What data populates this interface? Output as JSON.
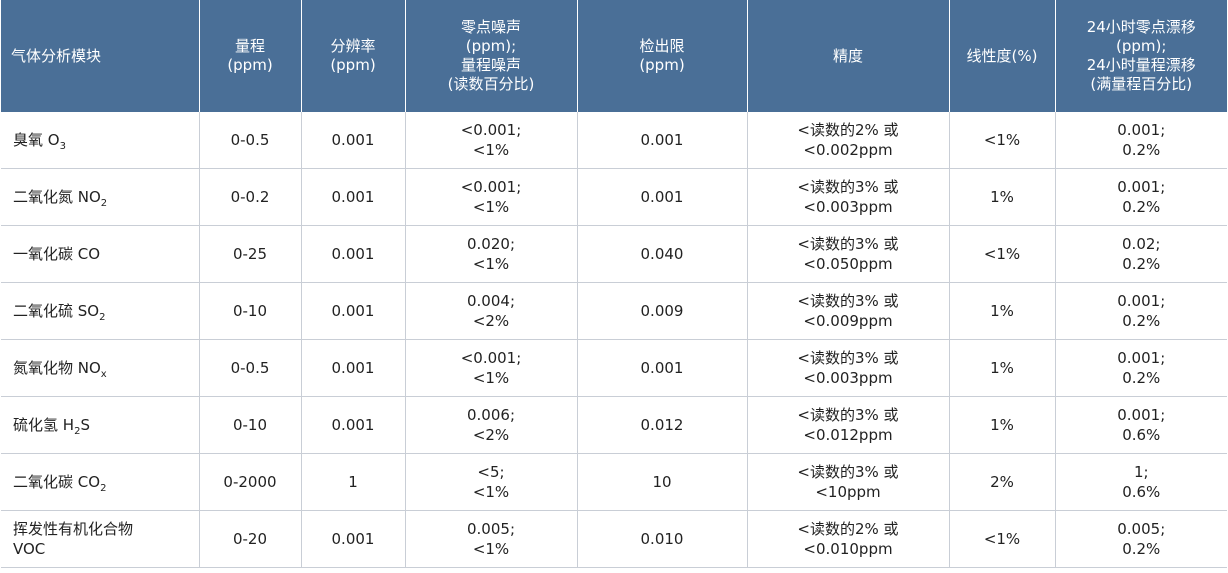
{
  "headers": [
    "气体分析模块",
    "量程\n(ppm)",
    "分辨率\n(ppm)",
    "零点噪声\n(ppm);\n量程噪声\n(读数百分比)",
    "检出限\n(ppm)",
    "精度",
    "线性度(%)",
    "24小时零点漂移\n(ppm);\n24小时量程漂移\n(满量程百分比)"
  ],
  "rows": [
    {
      "gas": "臭氧 O",
      "sub": "3",
      "range": "0-0.5",
      "resolution": "0.001",
      "noise": "<0.001;\n<1%",
      "detection": "0.001",
      "precision": "<读数的2% 或\n<0.002ppm",
      "linearity": "<1%",
      "drift": "0.001;\n0.2%"
    },
    {
      "gas": "二氧化氮 NO",
      "sub": "2",
      "range": "0-0.2",
      "resolution": "0.001",
      "noise": "<0.001;\n<1%",
      "detection": "0.001",
      "precision": "<读数的3% 或\n<0.003ppm",
      "linearity": "1%",
      "drift": "0.001;\n0.2%"
    },
    {
      "gas": "一氧化碳 CO",
      "sub": "",
      "range": "0-25",
      "resolution": "0.001",
      "noise": "0.020;\n<1%",
      "detection": "0.040",
      "precision": "<读数的3% 或\n<0.050ppm",
      "linearity": "<1%",
      "drift": "0.02;\n0.2%"
    },
    {
      "gas": "二氧化硫 SO",
      "sub": "2",
      "range": "0-10",
      "resolution": "0.001",
      "noise": "0.004;\n<2%",
      "detection": "0.009",
      "precision": "<读数的3% 或\n<0.009ppm",
      "linearity": "1%",
      "drift": "0.001;\n0.2%"
    },
    {
      "gas": "氮氧化物 NO",
      "sub": "x",
      "range": "0-0.5",
      "resolution": "0.001",
      "noise": "<0.001;\n<1%",
      "detection": "0.001",
      "precision": "<读数的3% 或\n<0.003ppm",
      "linearity": "1%",
      "drift": "0.001;\n0.2%"
    },
    {
      "gas": "硫化氢 H",
      "sub": "2",
      "gas_tail": "S",
      "range": "0-10",
      "resolution": "0.001",
      "noise": "0.006;\n<2%",
      "detection": "0.012",
      "precision": "<读数的3% 或\n<0.012ppm",
      "linearity": "1%",
      "drift": "0.001;\n0.6%"
    },
    {
      "gas": "二氧化碳 CO",
      "sub": "2",
      "range": "0-2000",
      "resolution": "1",
      "noise": "<5;\n<1%",
      "detection": "10",
      "precision": "<读数的3% 或\n<10ppm",
      "linearity": "2%",
      "drift": "1;\n0.6%"
    },
    {
      "gas": "挥发性有机化合物\nVOC",
      "sub": "",
      "range": "0-20",
      "resolution": "0.001",
      "noise": "0.005;\n<1%",
      "detection": "0.010",
      "precision": "<读数的2% 或\n<0.010ppm",
      "linearity": "<1%",
      "drift": "0.005;\n0.2%"
    }
  ]
}
